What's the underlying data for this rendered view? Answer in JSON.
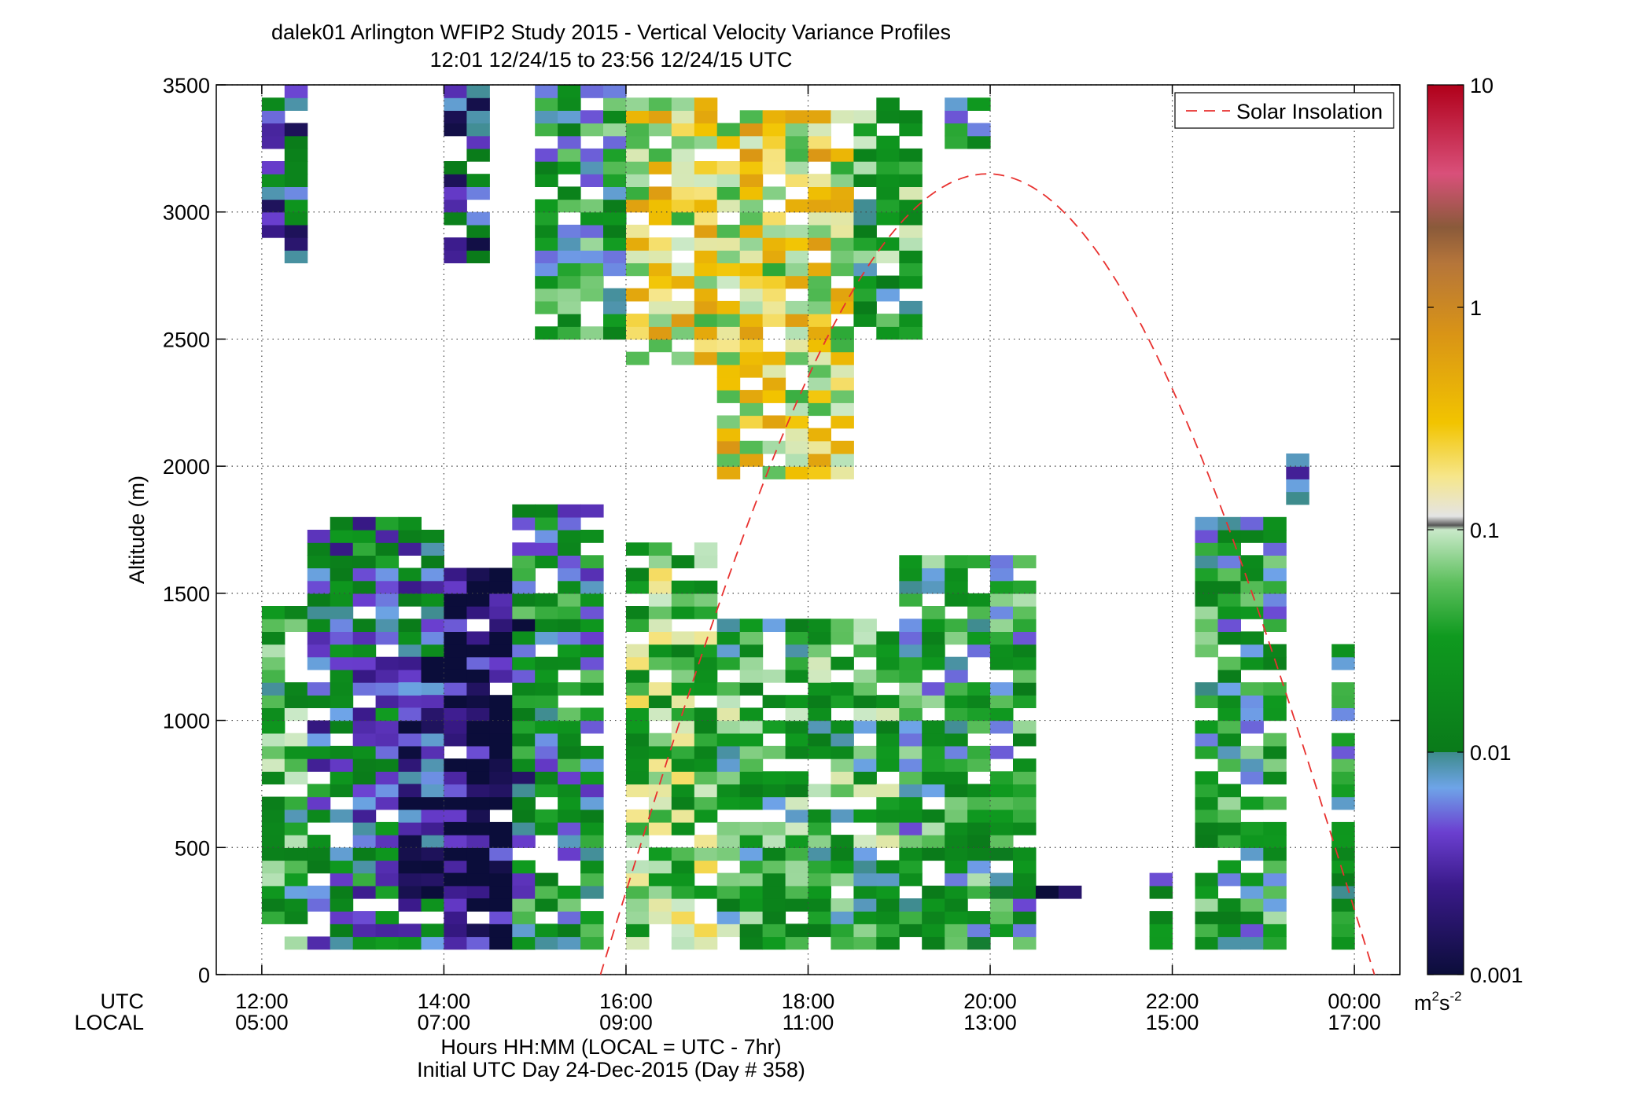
{
  "chart_data": {
    "type": "heatmap",
    "title": "dalek01 Arlington WFIP2 Study 2015 - Vertical Velocity Variance Profiles",
    "subtitle": "12:01 12/24/15 to 23:56 12/24/15  UTC",
    "ylabel": "Altitude (m)",
    "xlabel": "Hours HH:MM  (LOCAL = UTC - 7hr)",
    "xlabel2": "Initial UTC Day 24-Dec-2015 (Day # 358)",
    "utc_row_label": "UTC",
    "local_row_label": "LOCAL",
    "xlim_hours_utc": [
      11.5,
      24.5
    ],
    "ylim": [
      0,
      3500
    ],
    "y_ticks": [
      0,
      500,
      1000,
      1500,
      2000,
      2500,
      3000,
      3500
    ],
    "y_tick_labels": [
      "0",
      "500",
      "1000",
      "1500",
      "2000",
      "2500",
      "3000",
      "3500"
    ],
    "x_ticks_hours_utc": [
      12,
      14,
      16,
      18,
      20,
      22,
      24
    ],
    "x_tick_labels_utc": [
      "12:00",
      "14:00",
      "16:00",
      "18:00",
      "20:00",
      "22:00",
      "00:00"
    ],
    "x_tick_labels_local": [
      "05:00",
      "07:00",
      "09:00",
      "11:00",
      "13:00",
      "15:00",
      "17:00"
    ],
    "grid": true,
    "legend": {
      "entries": [
        "Solar Insolation"
      ],
      "placement": "top-right"
    },
    "colorbar": {
      "scale": "log",
      "range": [
        0.001,
        10
      ],
      "ticks": [
        0.001,
        0.01,
        0.1,
        1,
        10
      ],
      "tick_labels": [
        "0.001",
        "0.01",
        "0.1",
        "1",
        "10"
      ],
      "units_base": "m",
      "units_exp1": "2",
      "units_mid": "s",
      "units_exp2": "-2"
    },
    "solar_insolation": {
      "style": "red dashed",
      "color": "#e8312f",
      "rise_hour_utc": 15.72,
      "set_hour_utc": 24.22,
      "peak_altitude_m": 3150
    },
    "column_bin_hours": 0.25,
    "row_bin_m": 50,
    "regions": [
      {
        "hours_utc": [
          12.0,
          12.5
        ],
        "altitude_m": [
          2800,
          3500
        ],
        "variance": 0.006
      },
      {
        "hours_utc": [
          12.0,
          12.5
        ],
        "altitude_m": [
          100,
          1450
        ],
        "variance": 0.03
      },
      {
        "hours_utc": [
          12.5,
          14.0
        ],
        "altitude_m": [
          100,
          1800
        ],
        "variance": 0.01
      },
      {
        "hours_utc": [
          13.5,
          14.5
        ],
        "altitude_m": [
          300,
          1250
        ],
        "variance": 0.002
      },
      {
        "hours_utc": [
          14.0,
          14.5
        ],
        "altitude_m": [
          2800,
          3500
        ],
        "variance": 0.004
      },
      {
        "hours_utc": [
          14.0,
          15.0
        ],
        "altitude_m": [
          100,
          1600
        ],
        "variance": 0.0012
      },
      {
        "hours_utc": [
          14.75,
          15.75
        ],
        "altitude_m": [
          100,
          1850
        ],
        "variance": 0.015
      },
      {
        "hours_utc": [
          15.0,
          16.0
        ],
        "altitude_m": [
          2500,
          3500
        ],
        "variance": 0.02
      },
      {
        "hours_utc": [
          16.0,
          17.0
        ],
        "altitude_m": [
          100,
          1700
        ],
        "variance": 0.05
      },
      {
        "hours_utc": [
          16.0,
          17.0
        ],
        "altitude_m": [
          2400,
          3450
        ],
        "variance": 0.15
      },
      {
        "hours_utc": [
          17.0,
          18.5
        ],
        "altitude_m": [
          1950,
          3400
        ],
        "variance": 0.18
      },
      {
        "hours_utc": [
          17.0,
          19.0
        ],
        "altitude_m": [
          100,
          1400
        ],
        "variance": 0.03
      },
      {
        "hours_utc": [
          18.5,
          19.25
        ],
        "altitude_m": [
          2500,
          3450
        ],
        "variance": 0.03
      },
      {
        "hours_utc": [
          19.0,
          20.5
        ],
        "altitude_m": [
          100,
          1650
        ],
        "variance": 0.02
      },
      {
        "hours_utc": [
          19.5,
          20.0
        ],
        "altitude_m": [
          3250,
          3450
        ],
        "variance": 0.01
      },
      {
        "hours_utc": [
          20.5,
          21.0
        ],
        "altitude_m": [
          300,
          350
        ],
        "variance": 0.001
      },
      {
        "hours_utc": [
          21.75,
          22.0
        ],
        "altitude_m": [
          100,
          400
        ],
        "variance": 0.01
      },
      {
        "hours_utc": [
          22.25,
          23.25
        ],
        "altitude_m": [
          100,
          1800
        ],
        "variance": 0.02
      },
      {
        "hours_utc": [
          23.25,
          23.5
        ],
        "altitude_m": [
          1850,
          2050
        ],
        "variance": 0.006
      },
      {
        "hours_utc": [
          23.75,
          24.0
        ],
        "altitude_m": [
          100,
          1300
        ],
        "variance": 0.015
      }
    ]
  }
}
